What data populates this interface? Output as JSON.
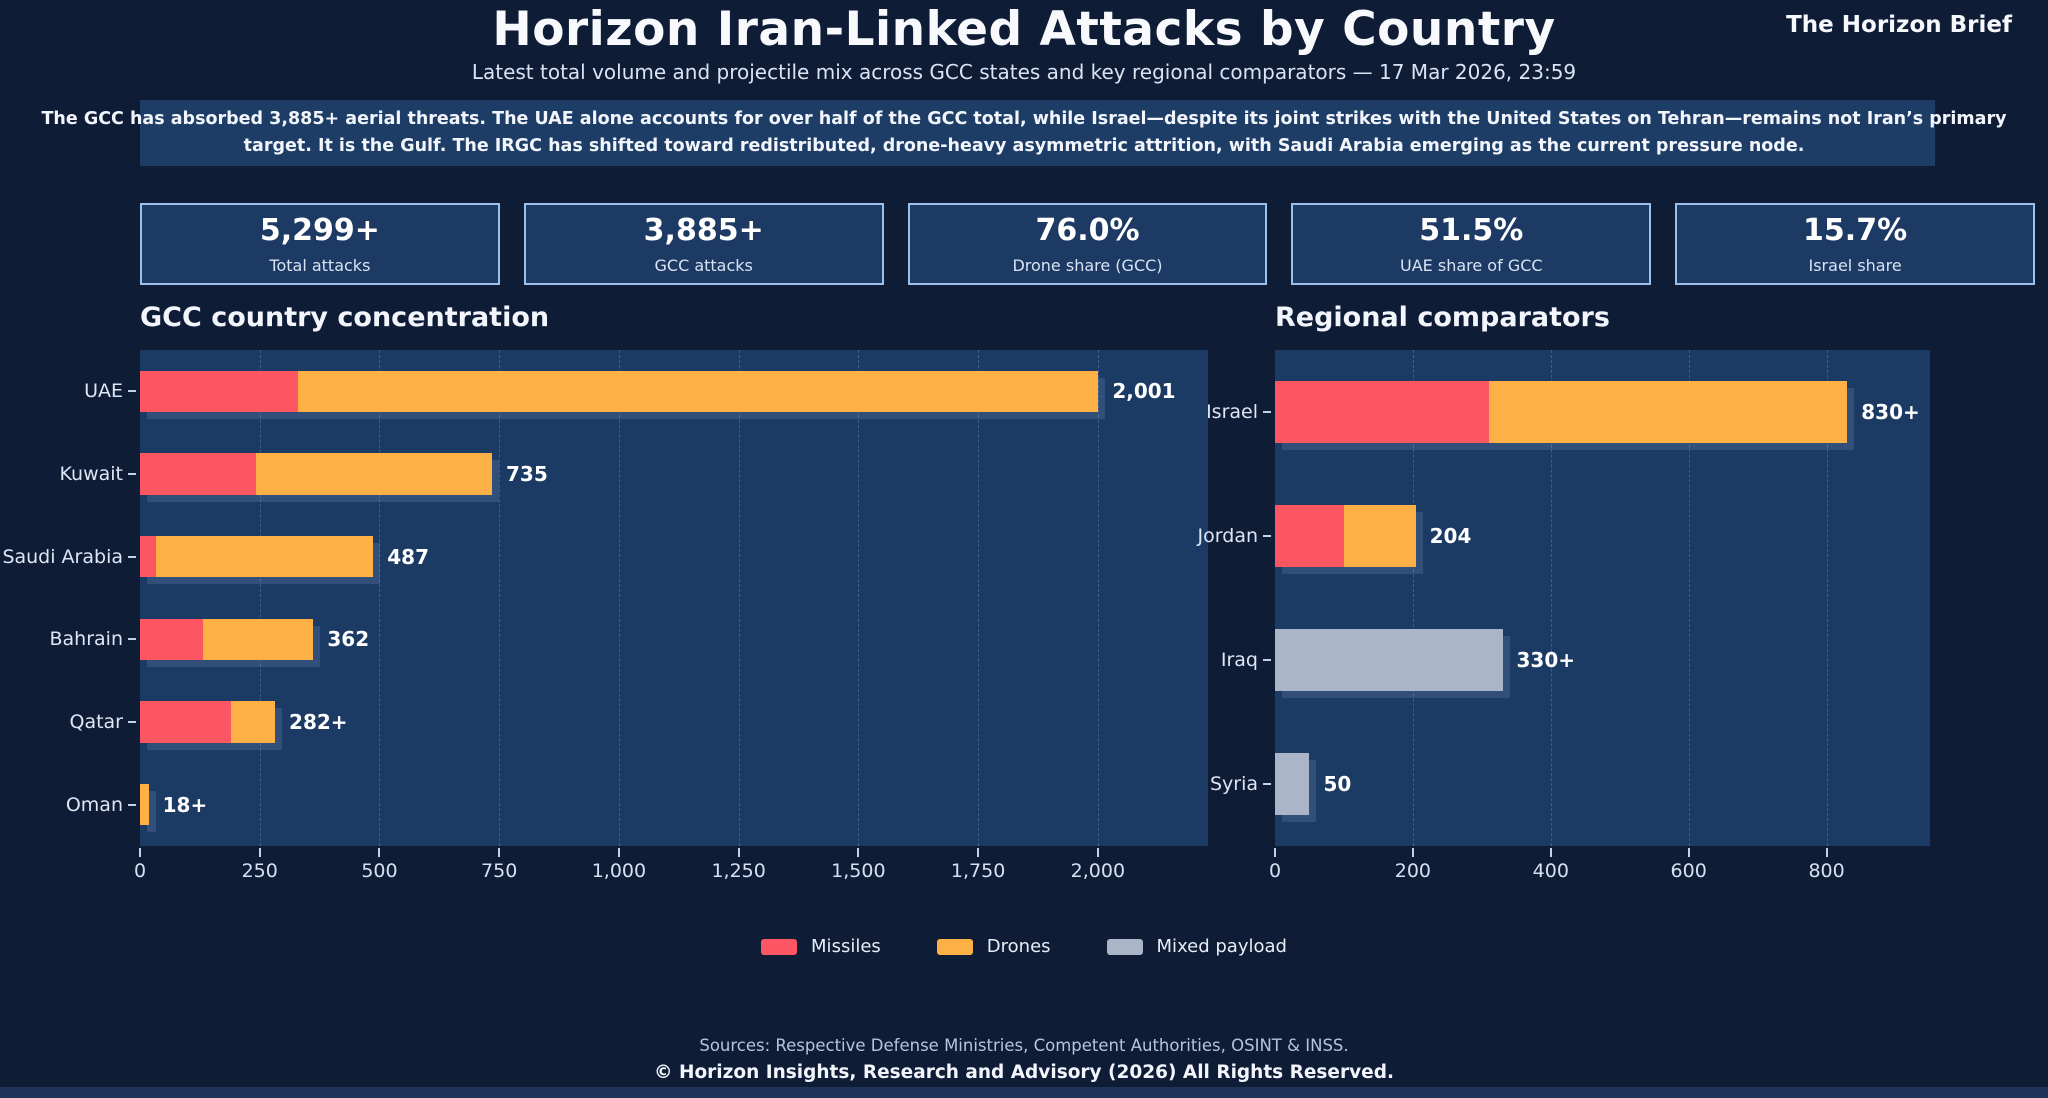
{
  "brand": "The Horizon Brief",
  "title": "Horizon Iran-Linked Attacks by Country",
  "subtitle": "Latest total volume and projectile mix across GCC states and key regional comparators — 17 Mar 2026, 23:59",
  "summary": "The GCC has absorbed 3,885+ aerial threats. The UAE alone accounts for over half of the GCC total, while Israel—despite its joint strikes with the United States on Tehran—remains not Iran’s primary target. It is the Gulf. The IRGC has shifted toward redistributed, drone-heavy asymmetric attrition, with Saudi Arabia emerging as the current pressure node.",
  "kpis": [
    {
      "value": "5,299+",
      "label": "Total attacks"
    },
    {
      "value": "3,885+",
      "label": "GCC attacks"
    },
    {
      "value": "76.0%",
      "label": "Drone share (GCC)"
    },
    {
      "value": "51.5%",
      "label": "UAE share of GCC"
    },
    {
      "value": "15.7%",
      "label": "Israel share"
    }
  ],
  "colors": {
    "background": "#0e1c36",
    "panel": "#1b3a64",
    "card_border": "#9dc0e8",
    "missiles": "#fb5661",
    "drones": "#fcb046",
    "mixed": "#aab6c8"
  },
  "legend": {
    "items": [
      {
        "label": "Missiles",
        "color": "#fb5661"
      },
      {
        "label": "Drones",
        "color": "#fcb046"
      },
      {
        "label": "Mixed payload",
        "color": "#aab6c8"
      }
    ]
  },
  "chart_data": [
    {
      "type": "bar",
      "orientation": "horizontal",
      "stacked": true,
      "title": "GCC country concentration",
      "categories": [
        "UAE",
        "Kuwait",
        "Saudi Arabia",
        "Bahrain",
        "Qatar",
        "Oman"
      ],
      "series": [
        {
          "name": "Missiles",
          "color": "#fb5661",
          "values": [
            330,
            242,
            33,
            131,
            191,
            0
          ]
        },
        {
          "name": "Drones",
          "color": "#fcb046",
          "values": [
            1671,
            493,
            454,
            231,
            91,
            18
          ]
        },
        {
          "name": "Mixed payload",
          "color": "#aab6c8",
          "values": [
            0,
            0,
            0,
            0,
            0,
            0
          ]
        }
      ],
      "totals": [
        2001,
        735,
        487,
        362,
        282,
        18
      ],
      "total_labels": [
        "2,001",
        "735",
        "487",
        "362",
        "282+",
        "18+"
      ],
      "xlabel": "",
      "ylabel": "",
      "xlim": [
        0,
        2230
      ],
      "xticks": [
        0,
        250,
        500,
        750,
        1000,
        1250,
        1500,
        1750,
        2000
      ],
      "grid": true,
      "legend_position": "bottom-center"
    },
    {
      "type": "bar",
      "orientation": "horizontal",
      "stacked": true,
      "title": "Regional comparators",
      "categories": [
        "Israel",
        "Jordan",
        "Iraq",
        "Syria"
      ],
      "series": [
        {
          "name": "Missiles",
          "color": "#fb5661",
          "values": [
            310,
            100,
            0,
            0
          ]
        },
        {
          "name": "Drones",
          "color": "#fcb046",
          "values": [
            520,
            104,
            0,
            0
          ]
        },
        {
          "name": "Mixed payload",
          "color": "#aab6c8",
          "values": [
            0,
            0,
            330,
            50
          ]
        }
      ],
      "totals": [
        830,
        204,
        330,
        50
      ],
      "total_labels": [
        "830+",
        "204",
        "330+",
        "50"
      ],
      "xlabel": "",
      "ylabel": "",
      "xlim": [
        0,
        950
      ],
      "xticks": [
        0,
        200,
        400,
        600,
        800
      ],
      "grid": true,
      "legend_position": "bottom-center"
    }
  ],
  "footer": {
    "sources": "Sources: Respective Defense Ministries, Competent Authorities, OSINT & INSS.",
    "copyright": "© Horizon Insights, Research and Advisory (2026) All Rights Reserved."
  }
}
